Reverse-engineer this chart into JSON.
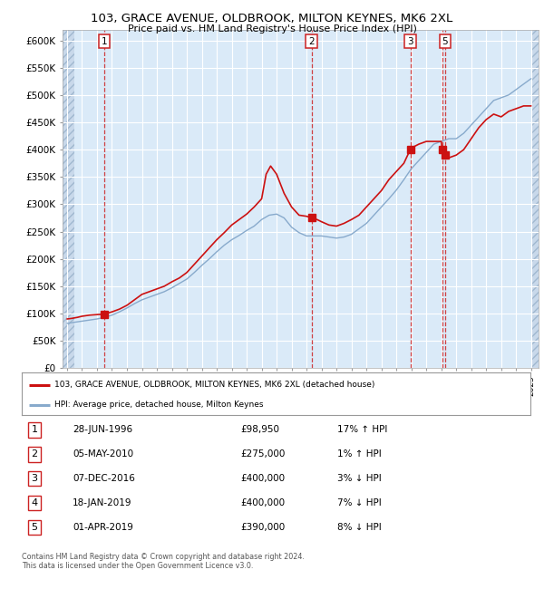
{
  "title": "103, GRACE AVENUE, OLDBROOK, MILTON KEYNES, MK6 2XL",
  "subtitle": "Price paid vs. HM Land Registry's House Price Index (HPI)",
  "ylim": [
    0,
    620000
  ],
  "yticks": [
    0,
    50000,
    100000,
    150000,
    200000,
    250000,
    300000,
    350000,
    400000,
    450000,
    500000,
    550000,
    600000
  ],
  "ytick_labels": [
    "£0",
    "£50K",
    "£100K",
    "£150K",
    "£200K",
    "£250K",
    "£300K",
    "£350K",
    "£400K",
    "£450K",
    "£500K",
    "£550K",
    "£600K"
  ],
  "xlim_start": 1993.7,
  "xlim_end": 2025.5,
  "plot_bg_color": "#daeaf8",
  "hatch_facecolor": "#c8d8ea",
  "grid_color": "#ffffff",
  "line_red_color": "#cc1111",
  "line_blue_color": "#88aacc",
  "legend_label_red": "103, GRACE AVENUE, OLDBROOK, MILTON KEYNES, MK6 2XL (detached house)",
  "legend_label_blue": "HPI: Average price, detached house, Milton Keynes",
  "footer": "Contains HM Land Registry data © Crown copyright and database right 2024.\nThis data is licensed under the Open Government Licence v3.0.",
  "sale_points": [
    {
      "num": 1,
      "date_x": 1996.49,
      "price": 98950,
      "label": "28-JUN-1996",
      "amount": "£98,950",
      "pct": "17% ↑ HPI",
      "show_top": true
    },
    {
      "num": 2,
      "date_x": 2010.34,
      "price": 275000,
      "label": "05-MAY-2010",
      "amount": "£275,000",
      "pct": "1% ↑ HPI",
      "show_top": true
    },
    {
      "num": 3,
      "date_x": 2016.93,
      "price": 400000,
      "label": "07-DEC-2016",
      "amount": "£400,000",
      "pct": "3% ↓ HPI",
      "show_top": true
    },
    {
      "num": 4,
      "date_x": 2019.05,
      "price": 400000,
      "label": "18-JAN-2019",
      "amount": "£400,000",
      "pct": "7% ↓ HPI",
      "show_top": false
    },
    {
      "num": 5,
      "date_x": 2019.25,
      "price": 390000,
      "label": "01-APR-2019",
      "amount": "£390,000",
      "pct": "8% ↓ HPI",
      "show_top": true
    }
  ],
  "red_line_x": [
    1994.0,
    1994.3,
    1994.7,
    1995.0,
    1995.5,
    1996.0,
    1996.49,
    1997.0,
    1997.5,
    1998.0,
    1998.5,
    1999.0,
    1999.5,
    2000.0,
    2000.5,
    2001.0,
    2001.5,
    2002.0,
    2002.5,
    2003.0,
    2003.5,
    2004.0,
    2004.5,
    2005.0,
    2005.5,
    2006.0,
    2006.5,
    2007.0,
    2007.3,
    2007.6,
    2008.0,
    2008.5,
    2009.0,
    2009.5,
    2010.0,
    2010.34,
    2010.7,
    2011.0,
    2011.5,
    2012.0,
    2012.5,
    2013.0,
    2013.5,
    2014.0,
    2014.5,
    2015.0,
    2015.5,
    2016.0,
    2016.5,
    2016.93,
    2017.0,
    2017.5,
    2018.0,
    2018.5,
    2019.0,
    2019.05,
    2019.25,
    2019.5,
    2020.0,
    2020.5,
    2021.0,
    2021.5,
    2022.0,
    2022.5,
    2023.0,
    2023.5,
    2024.0,
    2024.5,
    2025.0
  ],
  "red_line_y": [
    90000,
    91000,
    93000,
    95000,
    97000,
    98000,
    98950,
    103000,
    108000,
    115000,
    125000,
    135000,
    140000,
    145000,
    150000,
    158000,
    165000,
    175000,
    190000,
    205000,
    220000,
    235000,
    248000,
    262000,
    272000,
    282000,
    295000,
    310000,
    355000,
    370000,
    355000,
    320000,
    295000,
    280000,
    278000,
    275000,
    272000,
    268000,
    262000,
    260000,
    265000,
    272000,
    280000,
    295000,
    310000,
    325000,
    345000,
    360000,
    375000,
    400000,
    403000,
    410000,
    415000,
    415000,
    415000,
    400000,
    390000,
    385000,
    390000,
    400000,
    420000,
    440000,
    455000,
    465000,
    460000,
    470000,
    475000,
    480000,
    480000
  ],
  "blue_line_x": [
    1994.0,
    1994.5,
    1995.0,
    1995.5,
    1996.0,
    1996.5,
    1997.0,
    1997.5,
    1998.0,
    1998.5,
    1999.0,
    1999.5,
    2000.0,
    2000.5,
    2001.0,
    2001.5,
    2002.0,
    2002.5,
    2003.0,
    2003.5,
    2004.0,
    2004.5,
    2005.0,
    2005.5,
    2006.0,
    2006.5,
    2007.0,
    2007.5,
    2008.0,
    2008.5,
    2009.0,
    2009.5,
    2010.0,
    2010.5,
    2011.0,
    2011.5,
    2012.0,
    2012.5,
    2013.0,
    2013.5,
    2014.0,
    2014.5,
    2015.0,
    2015.5,
    2016.0,
    2016.5,
    2017.0,
    2017.5,
    2018.0,
    2018.5,
    2019.0,
    2019.5,
    2020.0,
    2020.5,
    2021.0,
    2021.5,
    2022.0,
    2022.5,
    2023.0,
    2023.5,
    2024.0,
    2024.5,
    2025.0
  ],
  "blue_line_y": [
    82000,
    84000,
    86000,
    88000,
    90000,
    93000,
    97000,
    103000,
    110000,
    118000,
    125000,
    130000,
    135000,
    140000,
    147000,
    155000,
    163000,
    175000,
    188000,
    200000,
    213000,
    225000,
    235000,
    243000,
    252000,
    260000,
    272000,
    280000,
    282000,
    275000,
    258000,
    248000,
    242000,
    242000,
    242000,
    240000,
    238000,
    240000,
    245000,
    255000,
    265000,
    280000,
    295000,
    310000,
    326000,
    345000,
    365000,
    380000,
    395000,
    410000,
    415000,
    420000,
    420000,
    430000,
    445000,
    460000,
    475000,
    490000,
    495000,
    500000,
    510000,
    520000,
    530000
  ]
}
